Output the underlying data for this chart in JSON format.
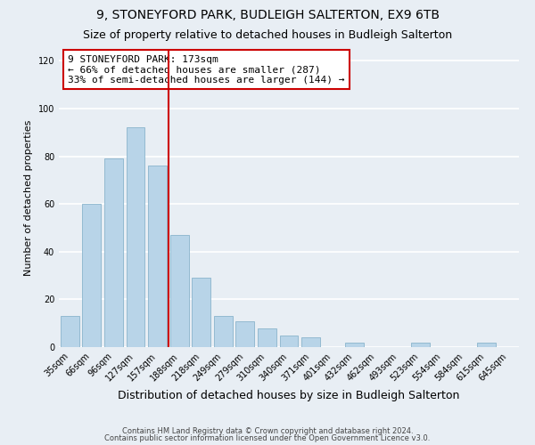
{
  "title": "9, STONEYFORD PARK, BUDLEIGH SALTERTON, EX9 6TB",
  "subtitle": "Size of property relative to detached houses in Budleigh Salterton",
  "xlabel": "Distribution of detached houses by size in Budleigh Salterton",
  "ylabel": "Number of detached properties",
  "bar_color": "#b8d4e8",
  "bar_edge_color": "#8ab4cc",
  "categories": [
    "35sqm",
    "66sqm",
    "96sqm",
    "127sqm",
    "157sqm",
    "188sqm",
    "218sqm",
    "249sqm",
    "279sqm",
    "310sqm",
    "340sqm",
    "371sqm",
    "401sqm",
    "432sqm",
    "462sqm",
    "493sqm",
    "523sqm",
    "554sqm",
    "584sqm",
    "615sqm",
    "645sqm"
  ],
  "values": [
    13,
    60,
    79,
    92,
    76,
    47,
    29,
    13,
    11,
    8,
    5,
    4,
    0,
    2,
    0,
    0,
    2,
    0,
    0,
    2,
    0
  ],
  "ylim": [
    0,
    125
  ],
  "yticks": [
    0,
    20,
    40,
    60,
    80,
    100,
    120
  ],
  "vline_color": "#cc0000",
  "annotation_title": "9 STONEYFORD PARK: 173sqm",
  "annotation_line1": "← 66% of detached houses are smaller (287)",
  "annotation_line2": "33% of semi-detached houses are larger (144) →",
  "annotation_box_color": "#ffffff",
  "annotation_box_edge_color": "#cc0000",
  "footer_line1": "Contains HM Land Registry data © Crown copyright and database right 2024.",
  "footer_line2": "Contains public sector information licensed under the Open Government Licence v3.0.",
  "background_color": "#e8eef4",
  "plot_background": "#e8eef4",
  "grid_color": "#ffffff",
  "title_fontsize": 10,
  "subtitle_fontsize": 9,
  "xlabel_fontsize": 9,
  "ylabel_fontsize": 8,
  "tick_fontsize": 7,
  "annot_fontsize": 8,
  "footer_fontsize": 6
}
